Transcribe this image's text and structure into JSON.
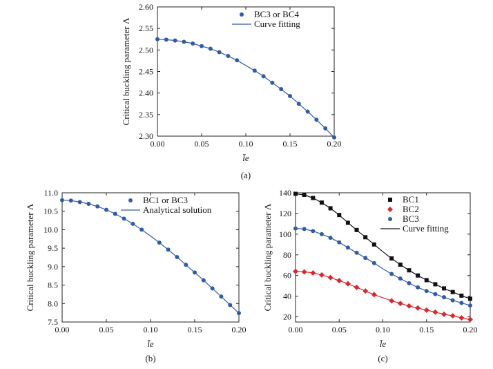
{
  "chart_data": [
    {
      "panel": "(a)",
      "type": "line",
      "xlabel": "l̄e",
      "ylabel": "Critical buckling parameter Λ",
      "xlim": [
        0.0,
        0.2
      ],
      "ylim": [
        2.3,
        2.6
      ],
      "xticks": [
        "0.00",
        "0.05",
        "0.10",
        "0.15",
        "0.20"
      ],
      "yticks": [
        "2.30",
        "2.35",
        "2.40",
        "2.45",
        "2.50",
        "2.55",
        "2.60"
      ],
      "grid": false,
      "legend_position": "top-right",
      "series": [
        {
          "name": "BC3 or BC4",
          "kind": "markers",
          "marker": "circle",
          "color": "#2f5ca8",
          "x": [
            0.0,
            0.01,
            0.02,
            0.03,
            0.04,
            0.05,
            0.06,
            0.07,
            0.08,
            0.09,
            0.11,
            0.12,
            0.13,
            0.14,
            0.15,
            0.16,
            0.17,
            0.18,
            0.19,
            0.2
          ],
          "y": [
            2.525,
            2.524,
            2.522,
            2.519,
            2.515,
            2.509,
            2.503,
            2.495,
            2.486,
            2.476,
            2.452,
            2.439,
            2.424,
            2.409,
            2.393,
            2.375,
            2.357,
            2.338,
            2.318,
            2.297
          ]
        },
        {
          "name": "Curve fitting",
          "kind": "line",
          "color": "#2f5ca8",
          "x": [
            0.0,
            0.01,
            0.02,
            0.03,
            0.04,
            0.05,
            0.06,
            0.07,
            0.08,
            0.09,
            0.1,
            0.11,
            0.12,
            0.13,
            0.14,
            0.15,
            0.16,
            0.17,
            0.18,
            0.19,
            0.2
          ],
          "y": [
            2.525,
            2.524,
            2.522,
            2.519,
            2.515,
            2.509,
            2.503,
            2.495,
            2.486,
            2.476,
            2.464,
            2.452,
            2.439,
            2.424,
            2.409,
            2.393,
            2.375,
            2.357,
            2.338,
            2.318,
            2.297
          ]
        }
      ]
    },
    {
      "panel": "(b)",
      "type": "line",
      "xlabel": "l̄e",
      "ylabel": "Critical buckling parameter Λ",
      "xlim": [
        0.0,
        0.2
      ],
      "ylim": [
        7.5,
        11.0
      ],
      "xticks": [
        "0.00",
        "0.05",
        "0.10",
        "0.15",
        "0.20"
      ],
      "yticks": [
        "7.5",
        "8.0",
        "8.5",
        "9.0",
        "9.5",
        "10.0",
        "10.5",
        "11.0"
      ],
      "grid": false,
      "legend_position": "top-right",
      "series": [
        {
          "name": "BC1 or BC3",
          "kind": "markers",
          "marker": "circle",
          "color": "#2f5ca8",
          "x": [
            0.0,
            0.01,
            0.02,
            0.03,
            0.04,
            0.05,
            0.06,
            0.07,
            0.08,
            0.09,
            0.11,
            0.12,
            0.13,
            0.14,
            0.15,
            0.16,
            0.17,
            0.18,
            0.19,
            0.2
          ],
          "y": [
            10.8,
            10.79,
            10.75,
            10.7,
            10.63,
            10.54,
            10.43,
            10.3,
            10.16,
            10.0,
            9.65,
            9.46,
            9.26,
            9.05,
            8.84,
            8.63,
            8.41,
            8.19,
            7.96,
            7.74
          ]
        },
        {
          "name": "Analytical solution",
          "kind": "line",
          "color": "#2f5ca8",
          "x": [
            0.0,
            0.01,
            0.02,
            0.03,
            0.04,
            0.05,
            0.06,
            0.07,
            0.08,
            0.09,
            0.1,
            0.11,
            0.12,
            0.13,
            0.14,
            0.15,
            0.16,
            0.17,
            0.18,
            0.19,
            0.2
          ],
          "y": [
            10.8,
            10.79,
            10.75,
            10.7,
            10.63,
            10.54,
            10.43,
            10.3,
            10.16,
            10.0,
            9.83,
            9.65,
            9.46,
            9.26,
            9.05,
            8.84,
            8.63,
            8.41,
            8.19,
            7.96,
            7.74
          ]
        }
      ]
    },
    {
      "panel": "(c)",
      "type": "line",
      "xlabel": "l̄e",
      "ylabel": "Critical buckling parameter Λ",
      "xlim": [
        0.0,
        0.2
      ],
      "ylim": [
        15,
        140
      ],
      "xticks": [
        "0.00",
        "0.05",
        "0.10",
        "0.15",
        "0.20"
      ],
      "yticks": [
        "20",
        "40",
        "60",
        "80",
        "100",
        "120",
        "140"
      ],
      "grid": false,
      "legend_position": "top-right",
      "series": [
        {
          "name": "BC1",
          "kind": "markers",
          "marker": "square",
          "color": "#111111",
          "x": [
            0.0,
            0.01,
            0.02,
            0.03,
            0.04,
            0.05,
            0.06,
            0.07,
            0.08,
            0.09,
            0.11,
            0.12,
            0.13,
            0.14,
            0.15,
            0.16,
            0.17,
            0.18,
            0.19,
            0.2
          ],
          "y": [
            139.0,
            138.0,
            135.0,
            130.5,
            125.0,
            118.5,
            111.0,
            104.0,
            97.0,
            90.0,
            76.5,
            70.5,
            65.0,
            60.0,
            55.5,
            51.5,
            47.5,
            44.0,
            40.5,
            37.5
          ]
        },
        {
          "name": "BC2",
          "kind": "markers",
          "marker": "diamond",
          "color": "#e0262b",
          "x": [
            0.0,
            0.01,
            0.02,
            0.03,
            0.04,
            0.05,
            0.06,
            0.07,
            0.08,
            0.09,
            0.11,
            0.12,
            0.13,
            0.14,
            0.15,
            0.16,
            0.17,
            0.18,
            0.19,
            0.2
          ],
          "y": [
            64.0,
            63.5,
            62.5,
            60.5,
            58.0,
            55.0,
            52.0,
            48.5,
            45.0,
            41.5,
            35.5,
            33.0,
            30.5,
            28.5,
            26.5,
            24.5,
            22.5,
            21.0,
            19.0,
            17.5
          ]
        },
        {
          "name": "BC3",
          "kind": "markers",
          "marker": "circle",
          "color": "#2f5ca8",
          "x": [
            0.0,
            0.01,
            0.02,
            0.03,
            0.04,
            0.05,
            0.06,
            0.07,
            0.08,
            0.09,
            0.11,
            0.12,
            0.13,
            0.14,
            0.15,
            0.16,
            0.17,
            0.18,
            0.19,
            0.2
          ],
          "y": [
            105.5,
            105.0,
            103.0,
            100.0,
            96.5,
            92.0,
            87.0,
            82.0,
            77.0,
            72.0,
            61.5,
            57.0,
            52.5,
            48.5,
            45.0,
            42.0,
            39.0,
            36.0,
            33.5,
            31.0
          ]
        },
        {
          "name": "Curve fitting",
          "kind": "line-group",
          "color": "#111111",
          "groups": [
            {
              "x": [
                0.0,
                0.01,
                0.02,
                0.03,
                0.04,
                0.05,
                0.06,
                0.07,
                0.08,
                0.09,
                0.1,
                0.11,
                0.12,
                0.13,
                0.14,
                0.15,
                0.16,
                0.17,
                0.18,
                0.19,
                0.2
              ],
              "y": [
                139.0,
                138.0,
                135.0,
                130.5,
                125.0,
                118.5,
                111.0,
                104.0,
                97.0,
                90.0,
                83.0,
                76.5,
                70.5,
                65.0,
                60.0,
                55.5,
                51.5,
                47.5,
                44.0,
                40.5,
                37.5
              ],
              "color": "#111111"
            },
            {
              "x": [
                0.0,
                0.01,
                0.02,
                0.03,
                0.04,
                0.05,
                0.06,
                0.07,
                0.08,
                0.09,
                0.1,
                0.11,
                0.12,
                0.13,
                0.14,
                0.15,
                0.16,
                0.17,
                0.18,
                0.19,
                0.2
              ],
              "y": [
                64.0,
                63.5,
                62.5,
                60.5,
                58.0,
                55.0,
                52.0,
                48.5,
                45.0,
                41.5,
                38.5,
                35.5,
                33.0,
                30.5,
                28.5,
                26.5,
                24.5,
                22.5,
                21.0,
                19.0,
                17.5
              ],
              "color": "#e0262b"
            },
            {
              "x": [
                0.0,
                0.01,
                0.02,
                0.03,
                0.04,
                0.05,
                0.06,
                0.07,
                0.08,
                0.09,
                0.1,
                0.11,
                0.12,
                0.13,
                0.14,
                0.15,
                0.16,
                0.17,
                0.18,
                0.19,
                0.2
              ],
              "y": [
                105.5,
                105.0,
                103.0,
                100.0,
                96.5,
                92.0,
                87.0,
                82.0,
                77.0,
                72.0,
                66.5,
                61.5,
                57.0,
                52.5,
                48.5,
                45.0,
                42.0,
                39.0,
                36.0,
                33.5,
                31.0
              ],
              "color": "#2f5ca8"
            }
          ]
        }
      ]
    }
  ]
}
